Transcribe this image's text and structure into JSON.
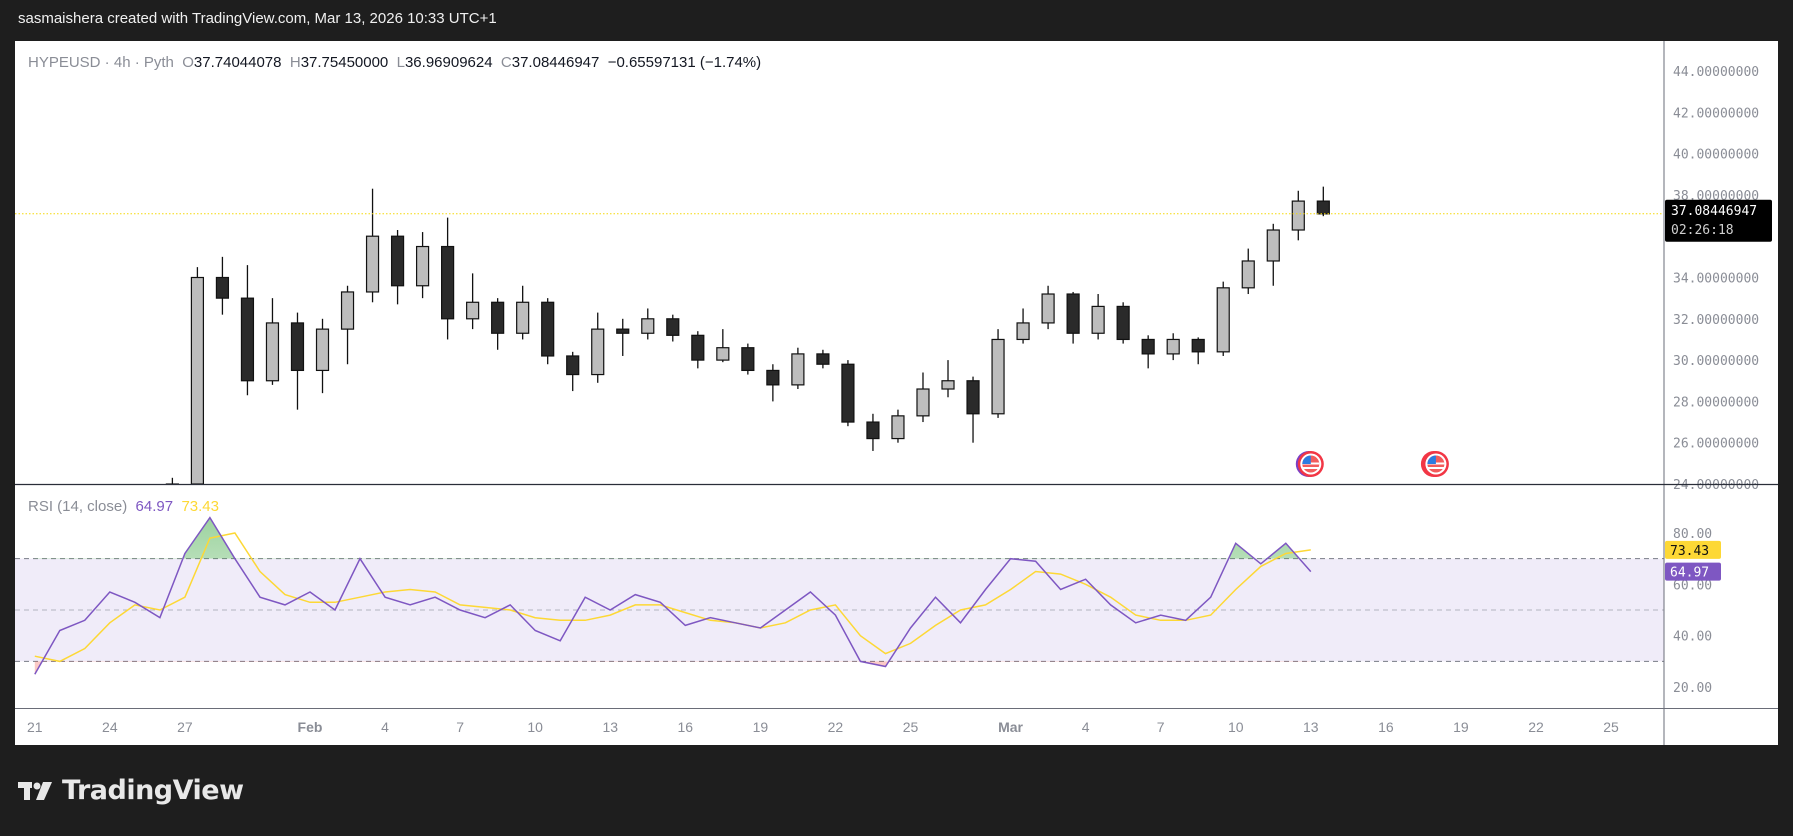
{
  "header": {
    "title": "sasmaishera created with TradingView.com, Mar 13, 2026 10:33 UTC+1"
  },
  "legend": {
    "symbol": "HYPEUSD · 4h · Pyth",
    "o_label": "O",
    "o_value": "37.74044078",
    "h_label": "H",
    "h_value": "37.75450000",
    "l_label": "L",
    "l_value": "36.96909624",
    "c_label": "C",
    "c_value": "37.08446947",
    "change": "−0.65597131 (−1.74%)"
  },
  "rsi_legend": {
    "name": "RSI (14, close)",
    "rsi_value": "64.97",
    "ma_value": "73.43"
  },
  "price_badge": {
    "price": "37.08446947",
    "countdown": "02:26:18"
  },
  "rsi_badges": {
    "ma": "73.43",
    "rsi": "64.97"
  },
  "footer": {
    "logo_text": "TradingView"
  },
  "colors": {
    "rsi_line": "#7e57c2",
    "rsi_ma": "#fdd835",
    "rsi_band": "#f0ecf9",
    "up_body": "#bdbdbd",
    "down_body": "#2a2a2a",
    "overbought_fill": "#4caf50",
    "oversold_fill": "#f44336",
    "price_line": "#f5d90a"
  },
  "event_markers": [
    {
      "icon": "us-flag-icon",
      "date": "2026-03-13"
    },
    {
      "icon": "us-flag-icon",
      "date": "2026-03-18"
    }
  ],
  "chart_data": [
    {
      "type": "candlestick",
      "symbol": "HYPEUSD",
      "interval_note": "approximate daily aggregation of 4h candles",
      "ylim": [
        24,
        44.8
      ],
      "y_ticks": [
        "44.00000000",
        "42.00000000",
        "40.00000000",
        "38.00000000",
        "34.00000000",
        "32.00000000",
        "30.00000000",
        "28.00000000",
        "26.00000000",
        "24.00000000"
      ],
      "y_tick_values": [
        44,
        42,
        40,
        38,
        34,
        32,
        30,
        28,
        26,
        24
      ],
      "current_price": 37.08446947,
      "x_ticks": [
        {
          "label": "21",
          "date": "2026-01-21"
        },
        {
          "label": "24",
          "date": "2026-01-24"
        },
        {
          "label": "27",
          "date": "2026-01-27"
        },
        {
          "label": "Feb",
          "date": "2026-02-01"
        },
        {
          "label": "4",
          "date": "2026-02-04"
        },
        {
          "label": "7",
          "date": "2026-02-07"
        },
        {
          "label": "10",
          "date": "2026-02-10"
        },
        {
          "label": "13",
          "date": "2026-02-13"
        },
        {
          "label": "16",
          "date": "2026-02-16"
        },
        {
          "label": "19",
          "date": "2026-02-19"
        },
        {
          "label": "22",
          "date": "2026-02-22"
        },
        {
          "label": "25",
          "date": "2026-02-25"
        },
        {
          "label": "Mar",
          "date": "2026-03-01"
        },
        {
          "label": "4",
          "date": "2026-03-04"
        },
        {
          "label": "7",
          "date": "2026-03-07"
        },
        {
          "label": "10",
          "date": "2026-03-10"
        },
        {
          "label": "13",
          "date": "2026-03-13"
        },
        {
          "label": "16",
          "date": "2026-03-16"
        },
        {
          "label": "19",
          "date": "2026-03-19"
        },
        {
          "label": "22",
          "date": "2026-03-22"
        },
        {
          "label": "25",
          "date": "2026-03-25"
        }
      ],
      "ohlc": [
        [
          "2026-01-26",
          22.5,
          24.3,
          22.0,
          24.0
        ],
        [
          "2026-01-27",
          24.0,
          34.5,
          23.8,
          34.0
        ],
        [
          "2026-01-28",
          34.0,
          35.0,
          32.2,
          33.0
        ],
        [
          "2026-01-29",
          33.0,
          34.6,
          28.3,
          29.0
        ],
        [
          "2026-01-30",
          29.0,
          33.0,
          28.8,
          31.8
        ],
        [
          "2026-01-31",
          31.8,
          32.3,
          27.6,
          29.5
        ],
        [
          "2026-02-01",
          29.5,
          32.0,
          28.4,
          31.5
        ],
        [
          "2026-02-02",
          31.5,
          33.6,
          29.8,
          33.3
        ],
        [
          "2026-02-03",
          33.3,
          38.3,
          32.8,
          36.0
        ],
        [
          "2026-02-04",
          36.0,
          36.3,
          32.7,
          33.6
        ],
        [
          "2026-02-05",
          33.6,
          36.2,
          33.0,
          35.5
        ],
        [
          "2026-02-06",
          35.5,
          36.9,
          31.0,
          32.0
        ],
        [
          "2026-02-07",
          32.0,
          34.2,
          31.5,
          32.8
        ],
        [
          "2026-02-08",
          32.8,
          33.0,
          30.5,
          31.3
        ],
        [
          "2026-02-09",
          31.3,
          33.6,
          31.0,
          32.8
        ],
        [
          "2026-02-10",
          32.8,
          33.0,
          29.8,
          30.2
        ],
        [
          "2026-02-11",
          30.2,
          30.4,
          28.5,
          29.3
        ],
        [
          "2026-02-12",
          29.3,
          32.3,
          28.9,
          31.5
        ],
        [
          "2026-02-13",
          31.5,
          32.0,
          30.2,
          31.3
        ],
        [
          "2026-02-14",
          31.3,
          32.5,
          31.0,
          32.0
        ],
        [
          "2026-02-15",
          32.0,
          32.2,
          30.9,
          31.2
        ],
        [
          "2026-02-16",
          31.2,
          31.4,
          29.6,
          30.0
        ],
        [
          "2026-02-17",
          30.0,
          31.5,
          29.9,
          30.6
        ],
        [
          "2026-02-18",
          30.6,
          30.8,
          29.3,
          29.5
        ],
        [
          "2026-02-19",
          29.5,
          29.8,
          28.0,
          28.8
        ],
        [
          "2026-02-20",
          28.8,
          30.6,
          28.6,
          30.3
        ],
        [
          "2026-02-21",
          30.3,
          30.5,
          29.6,
          29.8
        ],
        [
          "2026-02-22",
          29.8,
          30.0,
          26.8,
          27.0
        ],
        [
          "2026-02-23",
          27.0,
          27.4,
          25.6,
          26.2
        ],
        [
          "2026-02-24",
          26.2,
          27.6,
          26.0,
          27.3
        ],
        [
          "2026-02-25",
          27.3,
          29.4,
          27.0,
          28.6
        ],
        [
          "2026-02-26",
          28.6,
          30.0,
          28.2,
          29.0
        ],
        [
          "2026-02-27",
          29.0,
          29.2,
          26.0,
          27.4
        ],
        [
          "2026-02-28",
          27.4,
          31.5,
          27.2,
          31.0
        ],
        [
          "2026-03-01",
          31.0,
          32.5,
          30.8,
          31.8
        ],
        [
          "2026-03-02",
          31.8,
          33.6,
          31.5,
          33.2
        ],
        [
          "2026-03-03",
          33.2,
          33.3,
          30.8,
          31.3
        ],
        [
          "2026-03-04",
          31.3,
          33.2,
          31.0,
          32.6
        ],
        [
          "2026-03-05",
          32.6,
          32.8,
          30.8,
          31.0
        ],
        [
          "2026-03-06",
          31.0,
          31.2,
          29.6,
          30.3
        ],
        [
          "2026-03-07",
          30.3,
          31.3,
          30.0,
          31.0
        ],
        [
          "2026-03-08",
          31.0,
          31.1,
          29.8,
          30.4
        ],
        [
          "2026-03-09",
          30.4,
          33.8,
          30.2,
          33.5
        ],
        [
          "2026-03-10",
          33.5,
          35.4,
          33.2,
          34.8
        ],
        [
          "2026-03-11",
          34.8,
          36.6,
          33.6,
          36.3
        ],
        [
          "2026-03-12",
          36.3,
          38.2,
          35.8,
          37.7
        ],
        [
          "2026-03-13",
          37.7,
          38.4,
          36.97,
          37.08
        ]
      ]
    },
    {
      "type": "line",
      "title": "RSI (14, close)",
      "ylim": [
        14,
        92
      ],
      "y_ticks": [
        "80.00",
        "60.00",
        "40.00",
        "20.00"
      ],
      "y_tick_values": [
        80,
        60,
        40,
        20
      ],
      "bands": {
        "upper": 70,
        "middle": 50,
        "lower": 30
      },
      "x": [
        "2026-01-21",
        "2026-01-22",
        "2026-01-23",
        "2026-01-24",
        "2026-01-25",
        "2026-01-26",
        "2026-01-27",
        "2026-01-28",
        "2026-01-29",
        "2026-01-30",
        "2026-01-31",
        "2026-02-01",
        "2026-02-02",
        "2026-02-03",
        "2026-02-04",
        "2026-02-05",
        "2026-02-06",
        "2026-02-07",
        "2026-02-08",
        "2026-02-09",
        "2026-02-10",
        "2026-02-11",
        "2026-02-12",
        "2026-02-13",
        "2026-02-14",
        "2026-02-15",
        "2026-02-16",
        "2026-02-17",
        "2026-02-18",
        "2026-02-19",
        "2026-02-20",
        "2026-02-21",
        "2026-02-22",
        "2026-02-23",
        "2026-02-24",
        "2026-02-25",
        "2026-02-26",
        "2026-02-27",
        "2026-02-28",
        "2026-03-01",
        "2026-03-02",
        "2026-03-03",
        "2026-03-04",
        "2026-03-05",
        "2026-03-06",
        "2026-03-07",
        "2026-03-08",
        "2026-03-09",
        "2026-03-10",
        "2026-03-11",
        "2026-03-12",
        "2026-03-13"
      ],
      "series": [
        {
          "key": "rsi",
          "values": [
            25,
            42,
            46,
            57,
            53,
            47,
            72,
            86,
            70,
            55,
            52,
            57,
            50,
            70,
            55,
            52,
            55,
            50,
            47,
            52,
            42,
            38,
            55,
            50,
            56,
            53,
            44,
            47,
            45,
            43,
            50,
            57,
            48,
            30,
            28,
            43,
            55,
            45,
            58,
            70,
            69,
            58,
            62,
            52,
            45,
            48,
            46,
            55,
            76,
            68,
            76,
            64.97
          ]
        },
        {
          "key": "ma",
          "values": [
            32,
            30,
            35,
            45,
            52,
            50,
            55,
            78,
            80,
            65,
            56,
            53,
            53,
            55,
            57,
            58,
            57,
            52,
            51,
            50,
            47,
            46,
            46,
            48,
            52,
            52,
            49,
            46,
            45,
            43,
            45,
            50,
            52,
            40,
            33,
            37,
            44,
            50,
            52,
            58,
            65,
            64,
            60,
            55,
            48,
            46,
            46,
            48,
            58,
            67,
            72,
            73.43
          ]
        }
      ]
    }
  ]
}
